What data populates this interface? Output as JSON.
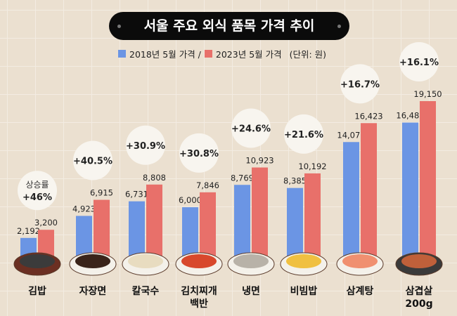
{
  "title": "서울 주요 외식 품목 가격 추이",
  "legend": {
    "series1": "2018년 5월 가격 /",
    "series2": "2023년 5월 가격",
    "unit": "(단위: 원)"
  },
  "colors": {
    "series1": "#6b95e4",
    "series2": "#e8706a"
  },
  "chart_data": {
    "type": "bar",
    "title": "서울 주요 외식 품목 가격 추이",
    "categories": [
      "김밥",
      "자장면",
      "칼국수",
      "김치찌개\n백반",
      "냉면",
      "비빔밥",
      "삼계탕",
      "삼겹살\n200g"
    ],
    "series": [
      {
        "name": "2018년 5월 가격",
        "values": [
          2192,
          4923,
          6731,
          6000,
          8769,
          8385,
          14077,
          16489
        ],
        "labels": [
          "2,192",
          "4,923",
          "6,731",
          "6,000",
          "8,769",
          "8,385",
          "14,077",
          "16,489"
        ]
      },
      {
        "name": "2023년 5월 가격",
        "values": [
          3200,
          6915,
          8808,
          7846,
          10923,
          10192,
          16423,
          19150
        ],
        "labels": [
          "3,200",
          "6,915",
          "8,808",
          "7,846",
          "10,923",
          "10,192",
          "16,423",
          "19,150"
        ]
      }
    ],
    "growth_label": "상승률",
    "growth": [
      "+46%",
      "+40.5%",
      "+30.9%",
      "+30.8%",
      "+24.6%",
      "+21.6%",
      "+16.7%",
      "+16.1%"
    ],
    "unit": "원",
    "ylim": [
      0,
      19150
    ],
    "legend_position": "top"
  }
}
